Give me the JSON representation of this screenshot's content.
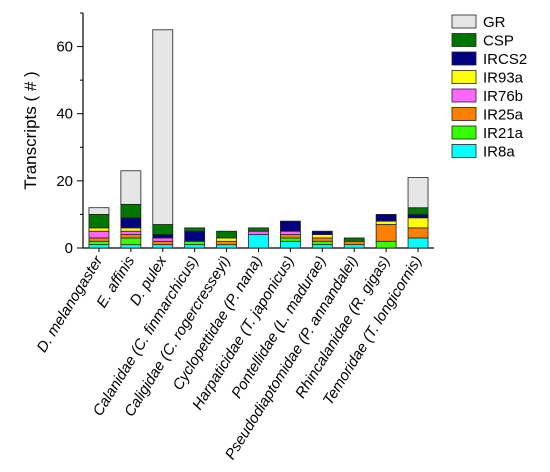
{
  "chart_data": {
    "type": "bar",
    "stacked": true,
    "ylabel": "Transcripts ( # )",
    "ylim": [
      0,
      70
    ],
    "yticks": [
      0,
      20,
      40,
      60
    ],
    "grid": false,
    "legend_position": "right",
    "categories": [
      "D. melanogaster",
      "E. affinis",
      "D. pulex",
      "Calanidae (C. finmarchicus)",
      "Caligidae (C. rogercresseyi)",
      "Cyclopettidae (P. nana)",
      "Harpaticidae (T. japonicus)",
      "Pontellidae (L. madurae)",
      "Pseudodiaptomidae (P. annandalei)",
      "Rhincalanidae (R. gigas)",
      "Temoridae (T. longicornis)"
    ],
    "series": [
      {
        "name": "IR8a",
        "color": "#00ffff",
        "values": [
          1,
          1,
          1,
          1,
          1,
          4,
          2,
          1,
          1,
          0,
          3
        ]
      },
      {
        "name": "IR21a",
        "color": "#33ff00",
        "values": [
          1,
          2,
          0,
          1,
          0,
          0,
          1,
          1,
          0,
          2,
          0
        ]
      },
      {
        "name": "IR25a",
        "color": "#ff8000",
        "values": [
          1,
          1,
          1,
          0,
          1,
          0,
          1,
          1,
          1,
          5,
          3
        ]
      },
      {
        "name": "IR76b",
        "color": "#ff66ff",
        "values": [
          2,
          1,
          1,
          0,
          0,
          1,
          1,
          0,
          0,
          0,
          0
        ]
      },
      {
        "name": "IR93a",
        "color": "#ffff00",
        "values": [
          1,
          1,
          0,
          0,
          1,
          0,
          0,
          1,
          0,
          1,
          3
        ]
      },
      {
        "name": "IRCS2",
        "color": "#000080",
        "values": [
          0,
          3,
          1,
          3,
          0,
          0,
          3,
          1,
          0,
          2,
          1
        ]
      },
      {
        "name": "CSP",
        "color": "#007700",
        "values": [
          4,
          4,
          3,
          1,
          2,
          1,
          0,
          0,
          1,
          0,
          2
        ]
      },
      {
        "name": "GR",
        "color": "#e6e6e6",
        "values": [
          2,
          10,
          58,
          0,
          0,
          0,
          0,
          0,
          0,
          0,
          9
        ]
      }
    ],
    "legend_order": [
      "GR",
      "CSP",
      "IRCS2",
      "IR93a",
      "IR76b",
      "IR25a",
      "IR21a",
      "IR8a"
    ]
  }
}
